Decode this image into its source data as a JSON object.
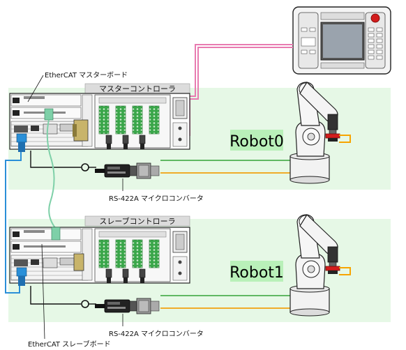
{
  "labels": {
    "master_board": "EtherCAT マスターボード",
    "master_controller": "マスターコントローラ",
    "robot0": "Robot0",
    "rs422_top": "RS-422A マイクロコンバータ",
    "slave_controller": "スレーブコントローラ",
    "robot1": "Robot1",
    "rs422_bottom": "RS-422A マイクロコンバータ",
    "slave_board": "EtherCAT スレーブボード"
  },
  "colors": {
    "zone_bg": "#e6f8e6",
    "title_bar": "#dcdcdc",
    "robot_label_bg": "#b9f0b9",
    "pendant_cable": "#e87bb0",
    "ethercat_cable": "#7ed0a8",
    "blue_cable": "#2a8fd8",
    "green_cable": "#4caf50",
    "orange_cable": "#f2a20f",
    "terminal_green": "#3aa64a",
    "robot_red": "#d21d1d",
    "robot_orange": "#f7a400"
  },
  "icons": {
    "pendant": "teach-pendant-icon",
    "robot": "robot-arm-icon",
    "converter": "rs422-converter-icon",
    "controller": "controller-rack-icon"
  }
}
